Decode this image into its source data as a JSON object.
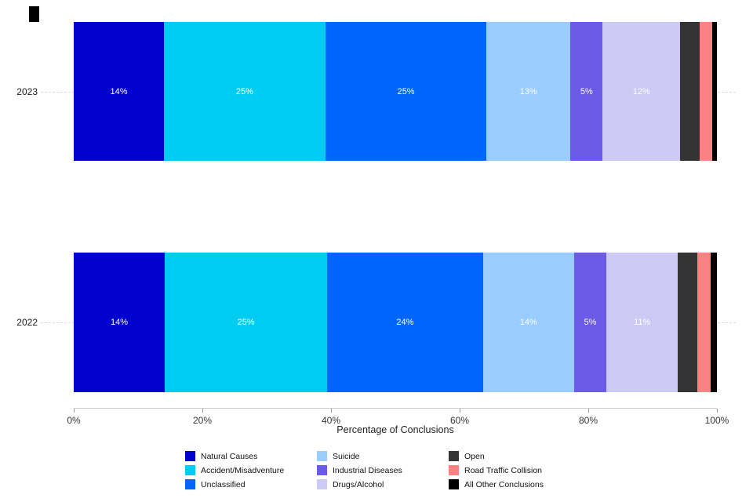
{
  "chart_data": {
    "type": "bar",
    "orientation": "horizontal",
    "stacked": true,
    "title": "",
    "xlabel": "Percentage of Conclusions",
    "ylabel": "",
    "xlim": [
      0,
      100
    ],
    "x_ticks": [
      "0%",
      "20%",
      "40%",
      "60%",
      "80%",
      "100%"
    ],
    "grid": "dashed horizontal gridline at each category",
    "legend_position": "bottom",
    "legend": [
      {
        "name": "Natural Causes",
        "color": "#0202CE"
      },
      {
        "name": "Accident/Misadventure",
        "color": "#00CCF2"
      },
      {
        "name": "Unclassified",
        "color": "#0066FB"
      },
      {
        "name": "Suicide",
        "color": "#99CCFF"
      },
      {
        "name": "Industrial Diseases",
        "color": "#6A5AE6"
      },
      {
        "name": "Drugs/Alcohol",
        "color": "#CDC9F5"
      },
      {
        "name": "Open",
        "color": "#333333"
      },
      {
        "name": "Road Traffic Collision",
        "color": "#FA8282"
      },
      {
        "name": "All Other Conclusions",
        "color": "#000000"
      }
    ],
    "bars": [
      {
        "category": "2023",
        "segments": [
          {
            "name": "Natural Causes",
            "value": 14,
            "label": "14%"
          },
          {
            "name": "Accident/Misadventure",
            "value": 25,
            "label": "25%"
          },
          {
            "name": "Unclassified",
            "value": 25,
            "label": "25%"
          },
          {
            "name": "Suicide",
            "value": 13,
            "label": "13%"
          },
          {
            "name": "Industrial Diseases",
            "value": 5,
            "label": "5%"
          },
          {
            "name": "Drugs/Alcohol",
            "value": 12,
            "label": "12%"
          },
          {
            "name": "Open",
            "value": 3,
            "label": ""
          },
          {
            "name": "Road Traffic Collision",
            "value": 2,
            "label": ""
          },
          {
            "name": "All Other Conclusions",
            "value": 0.7,
            "label": ""
          }
        ]
      },
      {
        "category": "2022",
        "segments": [
          {
            "name": "Natural Causes",
            "value": 14,
            "label": "14%"
          },
          {
            "name": "Accident/Misadventure",
            "value": 25,
            "label": "25%"
          },
          {
            "name": "Unclassified",
            "value": 24,
            "label": "24%"
          },
          {
            "name": "Suicide",
            "value": 14,
            "label": "14%"
          },
          {
            "name": "Industrial Diseases",
            "value": 5,
            "label": "5%"
          },
          {
            "name": "Drugs/Alcohol",
            "value": 11,
            "label": "11%"
          },
          {
            "name": "Open",
            "value": 3,
            "label": ""
          },
          {
            "name": "Road Traffic Collision",
            "value": 2,
            "label": ""
          },
          {
            "name": "All Other Conclusions",
            "value": 1,
            "label": ""
          }
        ]
      }
    ]
  }
}
